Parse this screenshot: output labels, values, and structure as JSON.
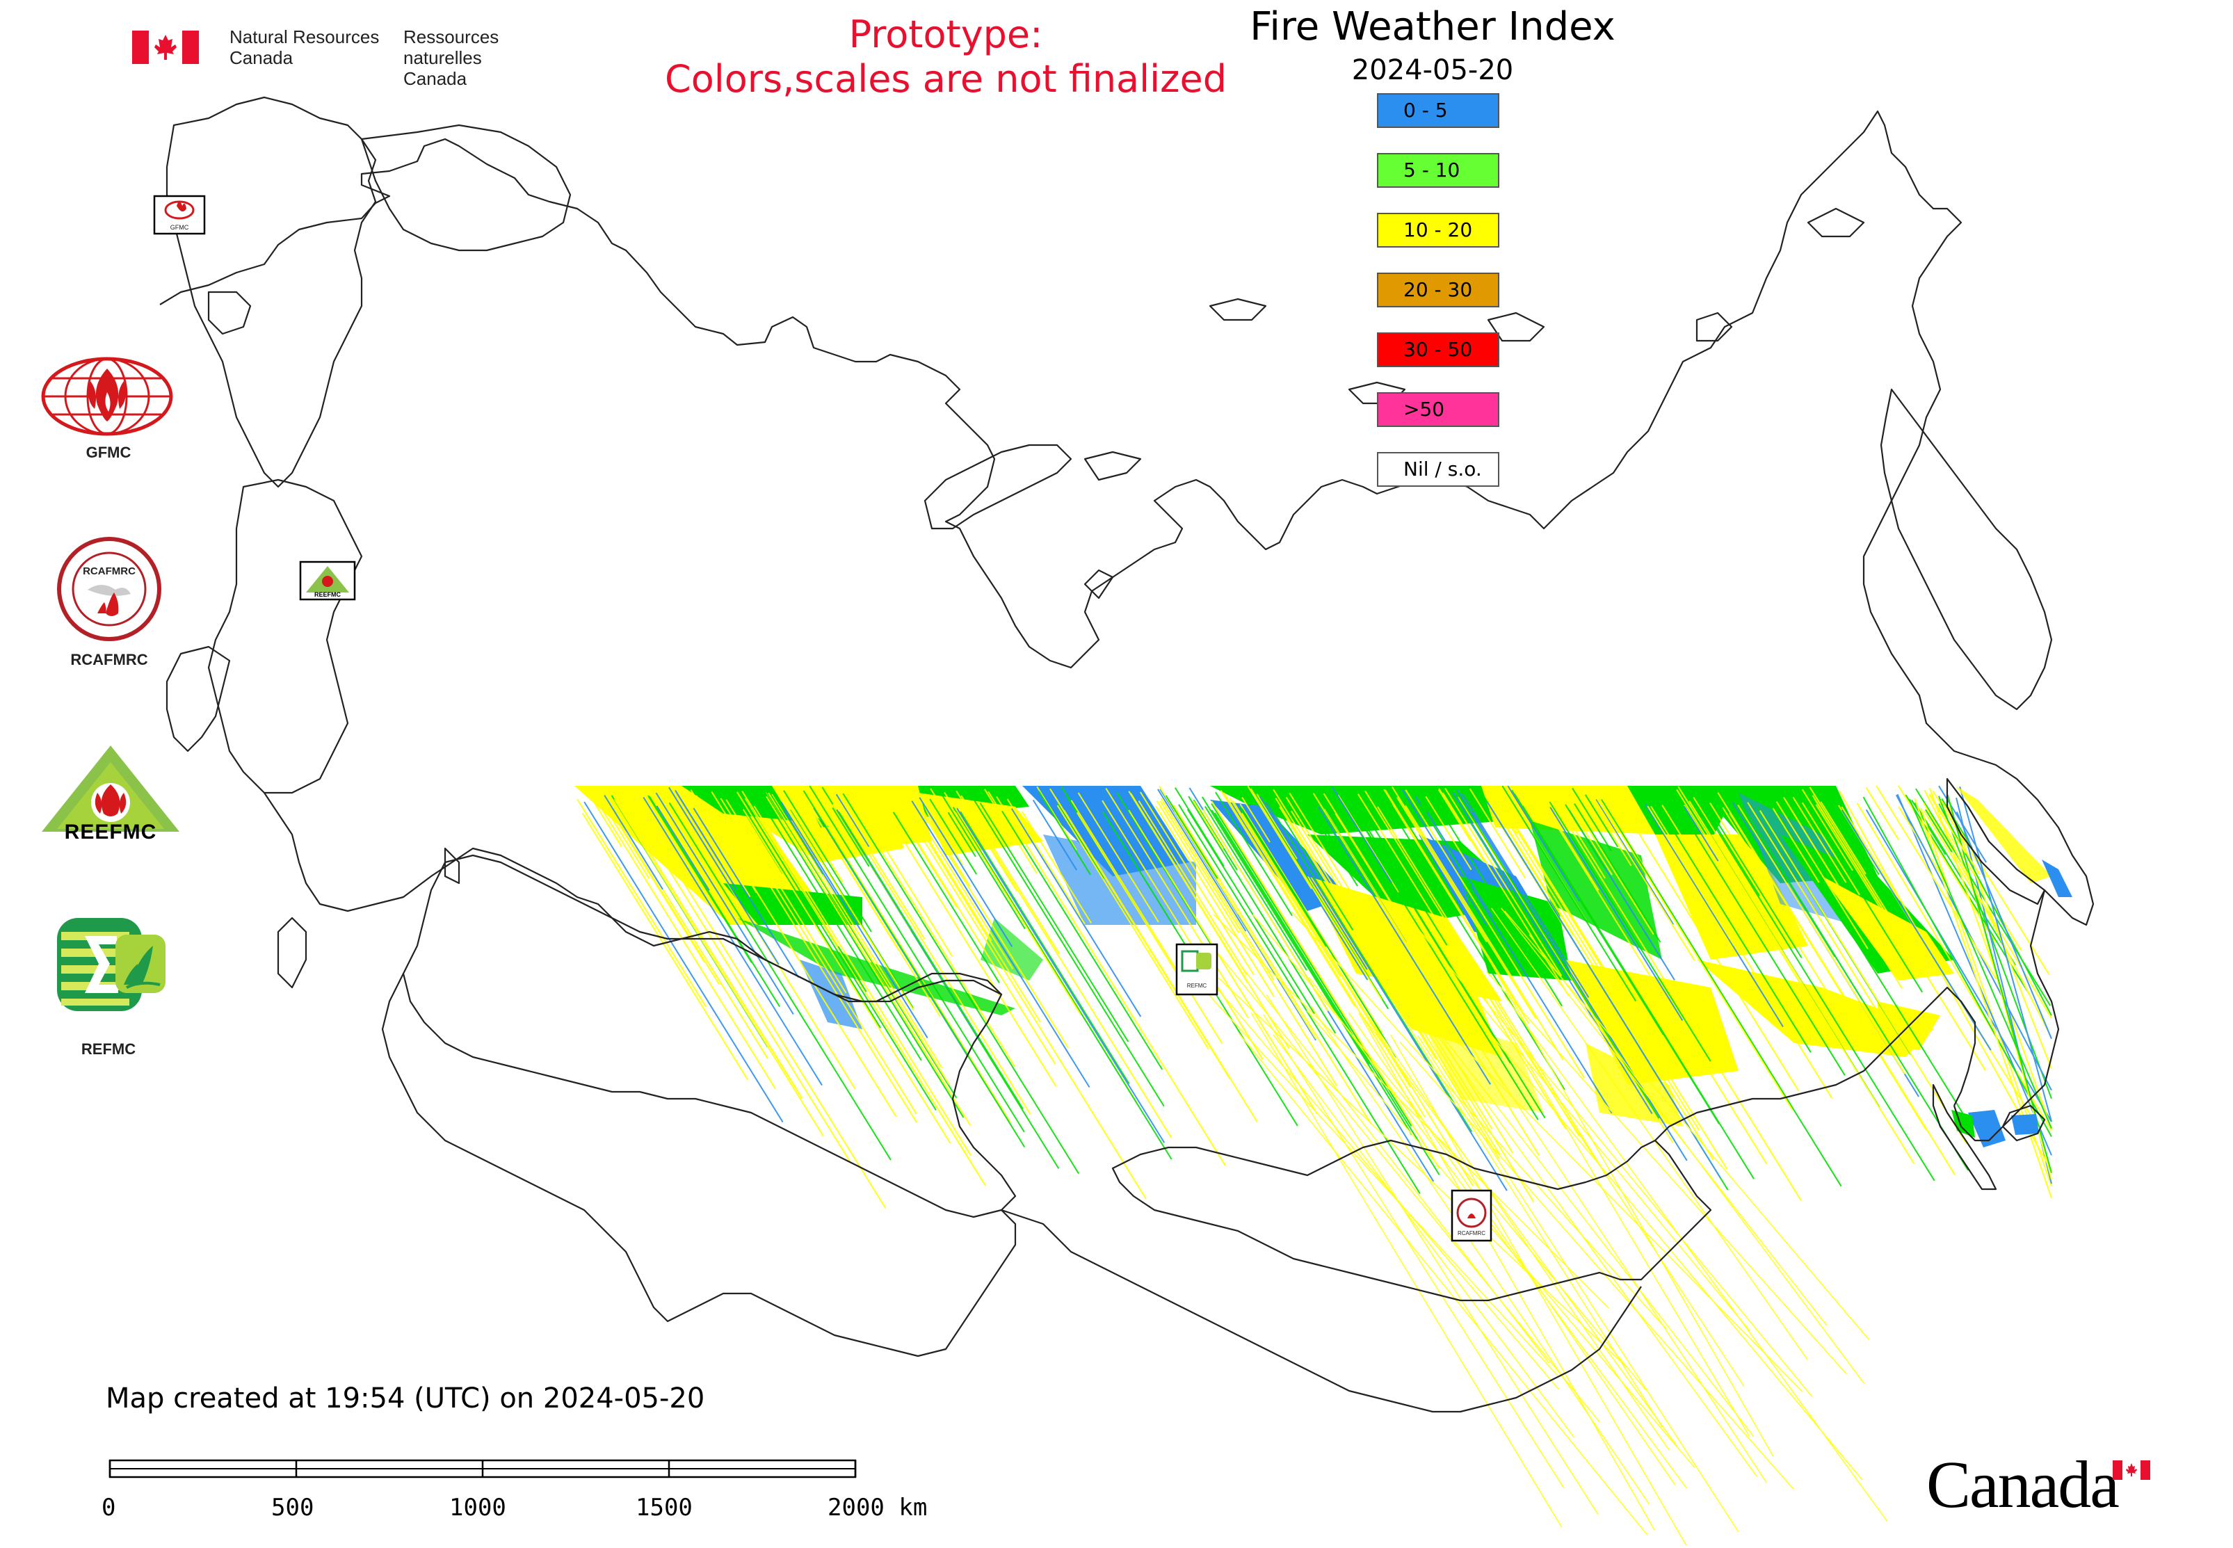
{
  "header": {
    "org_en_line1": "Natural Resources",
    "org_en_line2": "Canada",
    "org_fr_line1": "Ressources naturelles",
    "org_fr_line2": "Canada",
    "flag_icon": "canada-flag-icon"
  },
  "disclaimer": {
    "line1": "Prototype:",
    "line2": "Colors,scales are not finalized",
    "color": "#e8102e"
  },
  "title": "Fire Weather Index",
  "date": "2024-05-20",
  "legend": {
    "items": [
      {
        "label": "0 - 5",
        "color": "#2b8ff0"
      },
      {
        "label": "5 - 10",
        "color": "#66ff33"
      },
      {
        "label": "10 - 20",
        "color": "#ffff00"
      },
      {
        "label": "20 - 30",
        "color": "#e09a00"
      },
      {
        "label": "30 - 50",
        "color": "#ff0000"
      },
      {
        "label": ">50",
        "color": "#ff3399"
      },
      {
        "label": "Nil / s.o.",
        "color": "#ffffff"
      }
    ]
  },
  "side_logos": [
    {
      "label": "GFMC",
      "icon": "gfmc-logo-icon"
    },
    {
      "label": "RCAFMRC",
      "icon": "rcafmrc-logo-icon"
    },
    {
      "label": "",
      "icon": "reefmc-logo-icon",
      "wordmark": "REEFMC"
    },
    {
      "label": "REFMC",
      "icon": "refmc-logo-icon"
    }
  ],
  "rcafmrc_badge_text": "RCAFMRC",
  "map_markers": [
    {
      "name": "gfmc-marker",
      "text": "GFMC"
    },
    {
      "name": "reefmc-marker",
      "text": "REEFMC"
    },
    {
      "name": "refmc-marker",
      "text": "REFMC"
    },
    {
      "name": "rcafmrc-marker",
      "text": "RCAFMRC"
    }
  ],
  "footer": {
    "created": "Map created at 19:54 (UTC) on 2024-05-20",
    "scale_labels": [
      "0",
      "500",
      "1000",
      "1500",
      "2000 km"
    ],
    "wordmark": "Canada"
  }
}
